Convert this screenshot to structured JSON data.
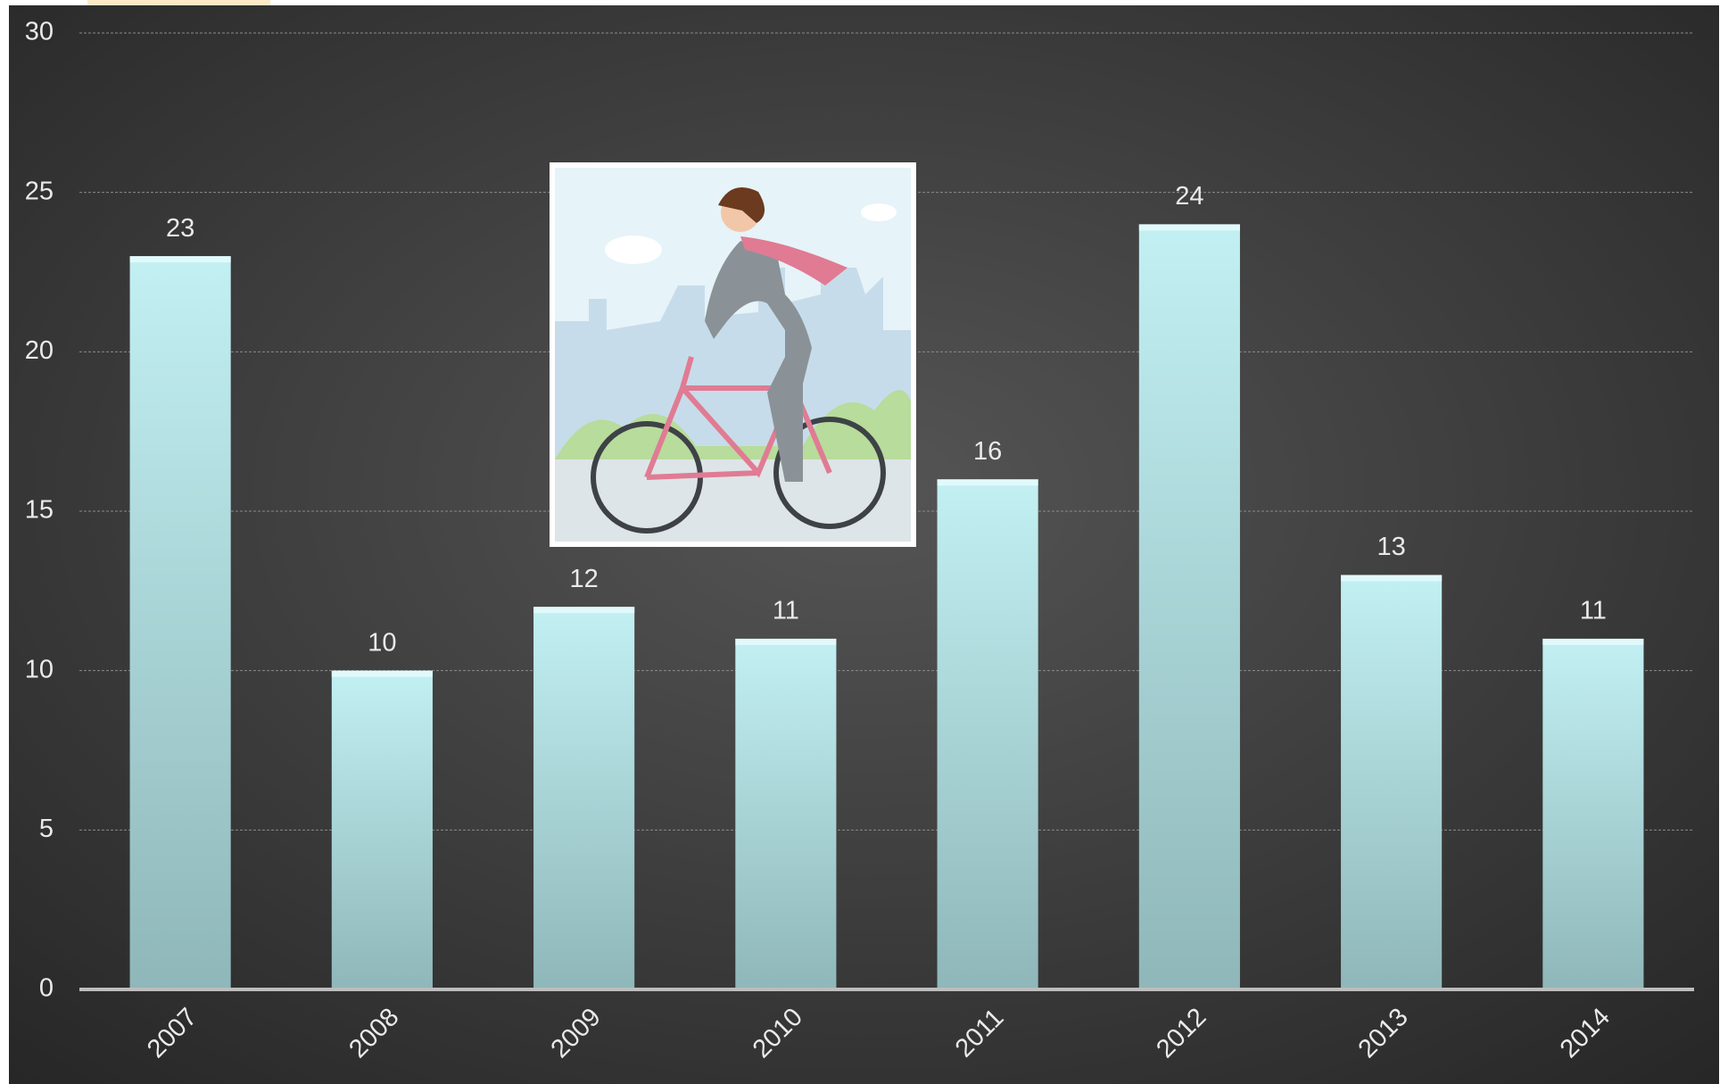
{
  "chart_data": {
    "type": "bar",
    "categories": [
      "2007",
      "2008",
      "2009",
      "2010",
      "2011",
      "2012",
      "2013",
      "2014"
    ],
    "values": [
      23,
      10,
      12,
      11,
      16,
      24,
      13,
      11
    ],
    "color": "#b6e6ea",
    "ylim": [
      0,
      30
    ],
    "yticks": [
      0,
      5,
      10,
      15,
      20,
      25,
      30
    ],
    "grid": true
  }
}
